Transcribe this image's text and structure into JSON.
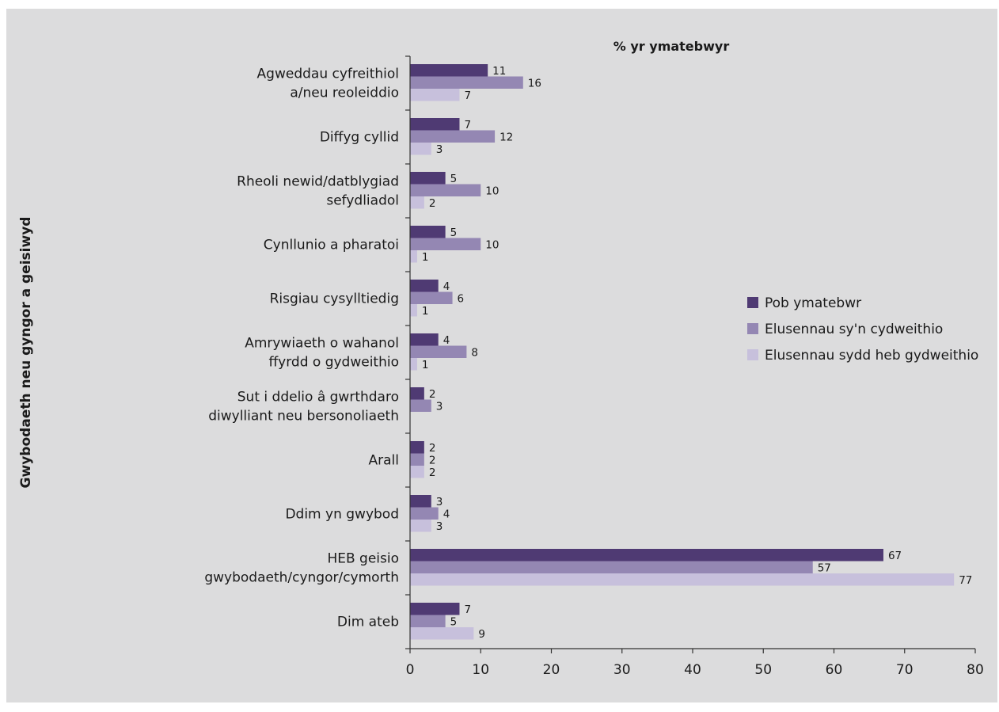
{
  "chart_data": {
    "type": "bar",
    "orientation": "horizontal",
    "title": "% yr ymatebwyr",
    "xlabel": "",
    "ylabel": "Gwybodaeth neu gyngor a geisiwyd",
    "xlim": [
      0,
      80
    ],
    "xticks": [
      0,
      10,
      20,
      30,
      40,
      50,
      60,
      70,
      80
    ],
    "grid": false,
    "legend_position": "right",
    "categories": [
      [
        "Agweddau cyfreithiol",
        "a/neu reoleiddio"
      ],
      [
        "Diffyg cyllid"
      ],
      [
        "Rheoli newid/datblygiad",
        "sefydliadol"
      ],
      [
        "Cynllunio a pharatoi"
      ],
      [
        "Risgiau cysylltiedig"
      ],
      [
        "Amrywiaeth o wahanol",
        "ffyrdd o gydweithio"
      ],
      [
        "Sut i ddelio â gwrthdaro",
        "diwylliant neu bersonoliaeth"
      ],
      [
        "Arall"
      ],
      [
        "Ddim yn gwybod"
      ],
      [
        "HEB geisio",
        "gwybodaeth/cyngor/cymorth"
      ],
      [
        "Dim ateb"
      ]
    ],
    "series": [
      {
        "name": "Pob ymatebwr",
        "color": "#4f3a73",
        "values": [
          11,
          7,
          5,
          5,
          4,
          4,
          2,
          2,
          3,
          67,
          7
        ]
      },
      {
        "name": "Elusennau sy'n cydweithio",
        "color": "#9487b3",
        "values": [
          16,
          12,
          10,
          10,
          6,
          8,
          3,
          2,
          4,
          57,
          5
        ]
      },
      {
        "name": "Elusennau sydd heb gydweithio",
        "color": "#c7c0dc",
        "values": [
          7,
          3,
          2,
          1,
          1,
          1,
          null,
          2,
          3,
          77,
          9
        ]
      }
    ]
  }
}
